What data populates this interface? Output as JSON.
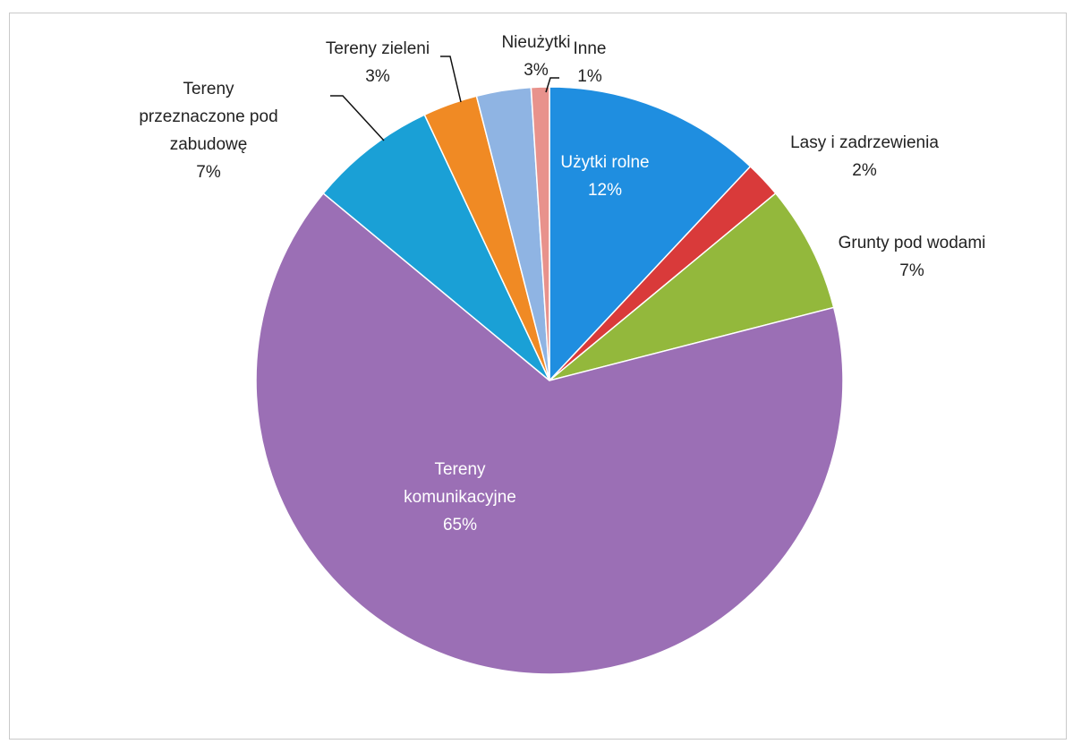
{
  "chart_data": {
    "type": "pie",
    "slices": [
      {
        "label_lines": [
          "Użytki rolne"
        ],
        "percent_label": "12%",
        "value": 12,
        "color": "#1f8ee0",
        "label_color": "#ffffff"
      },
      {
        "label_lines": [
          "Lasy i zadrzewienia"
        ],
        "percent_label": "2%",
        "value": 2,
        "color": "#d93a3a",
        "label_color": "#222222"
      },
      {
        "label_lines": [
          "Grunty pod wodami"
        ],
        "percent_label": "7%",
        "value": 7,
        "color": "#93b83c",
        "label_color": "#222222"
      },
      {
        "label_lines": [
          "Tereny",
          "komunikacyjne"
        ],
        "percent_label": "65%",
        "value": 65,
        "color": "#9b6fb5",
        "label_color": "#ffffff"
      },
      {
        "label_lines": [
          "Tereny",
          "przeznaczone pod",
          "zabudowę"
        ],
        "percent_label": "7%",
        "value": 7,
        "color": "#1aa0d6",
        "label_color": "#222222"
      },
      {
        "label_lines": [
          "Tereny zieleni"
        ],
        "percent_label": "3%",
        "value": 3,
        "color": "#f08a24",
        "label_color": "#222222"
      },
      {
        "label_lines": [
          "Nieużytki"
        ],
        "percent_label": "3%",
        "value": 3,
        "color": "#8fb4e3",
        "label_color": "#222222"
      },
      {
        "label_lines": [
          "Inne"
        ],
        "percent_label": "1%",
        "value": 1,
        "color": "#e8928c",
        "label_color": "#222222"
      }
    ]
  }
}
